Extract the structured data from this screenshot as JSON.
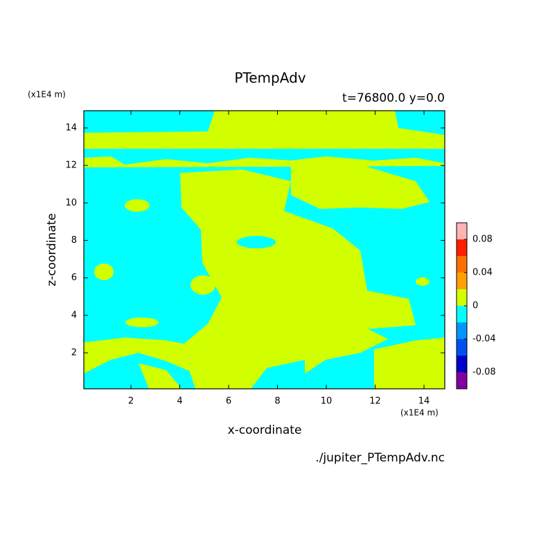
{
  "chart_data": {
    "type": "contour",
    "title": "PTempAdv",
    "subtitle": "t=76800.0 y=0.0",
    "x_unit": "(x1E4 m)",
    "y_unit": "(x1E4 m)",
    "x_label": "x-coordinate",
    "y_label": "z-coordinate",
    "source": "./jupiter_PTempAdv.nc",
    "xlim": [
      0.07,
      14.85
    ],
    "ylim": [
      0.08,
      14.92
    ],
    "xticks": [
      2,
      4,
      6,
      8,
      10,
      12,
      14
    ],
    "yticks": [
      2,
      4,
      6,
      8,
      10,
      12,
      14
    ],
    "levels": [
      -0.1,
      -0.08,
      -0.06,
      -0.04,
      -0.02,
      0,
      0.02,
      0.04,
      0.06,
      0.08,
      0.1
    ],
    "colors": [
      "#8000a0",
      "#0000c8",
      "#0050f0",
      "#0096ff",
      "#00ffff",
      "#d2ff00",
      "#ffa000",
      "#ff7000",
      "#ff1e00",
      "#ffb4b4"
    ],
    "colorbar_ticks": [
      -0.08,
      -0.04,
      0,
      0.04,
      0.08
    ]
  }
}
